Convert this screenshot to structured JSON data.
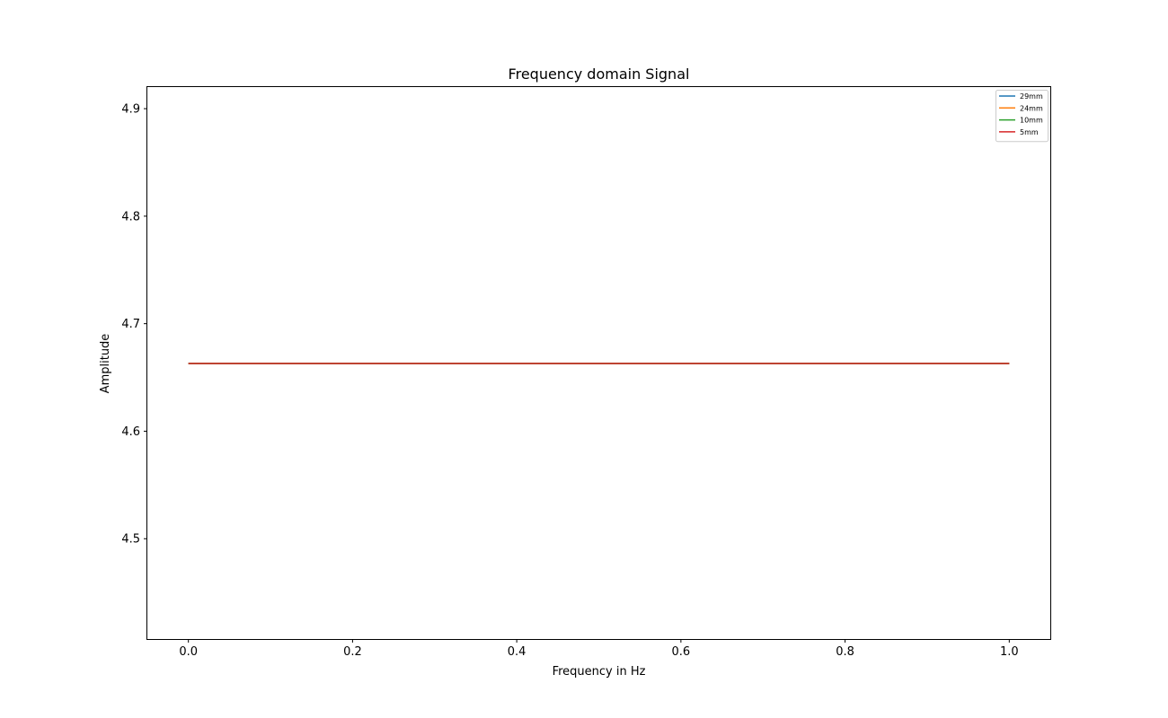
{
  "chart_data": {
    "type": "line",
    "title": "Frequency domain Signal",
    "xlabel": "Frequency in Hz",
    "ylabel": "Amplitude",
    "xlim": [
      -0.05,
      1.05
    ],
    "ylim": [
      4.4067,
      4.9201
    ],
    "xticks": [
      0.0,
      0.2,
      0.4,
      0.6,
      0.8,
      1.0
    ],
    "xtick_labels": [
      "0.0",
      "0.2",
      "0.4",
      "0.6",
      "0.8",
      "1.0"
    ],
    "yticks": [
      4.5,
      4.6,
      4.7,
      4.8,
      4.9
    ],
    "ytick_labels": [
      "4.5",
      "4.6",
      "4.7",
      "4.8",
      "4.9"
    ],
    "grid": false,
    "legend_position": "top-right",
    "series": [
      {
        "name": "29mm",
        "color": "#1f77b4",
        "x": [
          0.0,
          1.0
        ],
        "y": [
          4.663,
          4.663
        ]
      },
      {
        "name": "24mm",
        "color": "#ff7f0e",
        "x": [
          0.0,
          1.0
        ],
        "y": [
          4.663,
          4.663
        ]
      },
      {
        "name": "10mm",
        "color": "#2ca02c",
        "x": [
          0.0,
          1.0
        ],
        "y": [
          4.663,
          4.663
        ]
      },
      {
        "name": "5mm",
        "color": "#d62728",
        "x": [
          0.0,
          1.0
        ],
        "y": [
          4.663,
          4.663
        ]
      }
    ]
  }
}
